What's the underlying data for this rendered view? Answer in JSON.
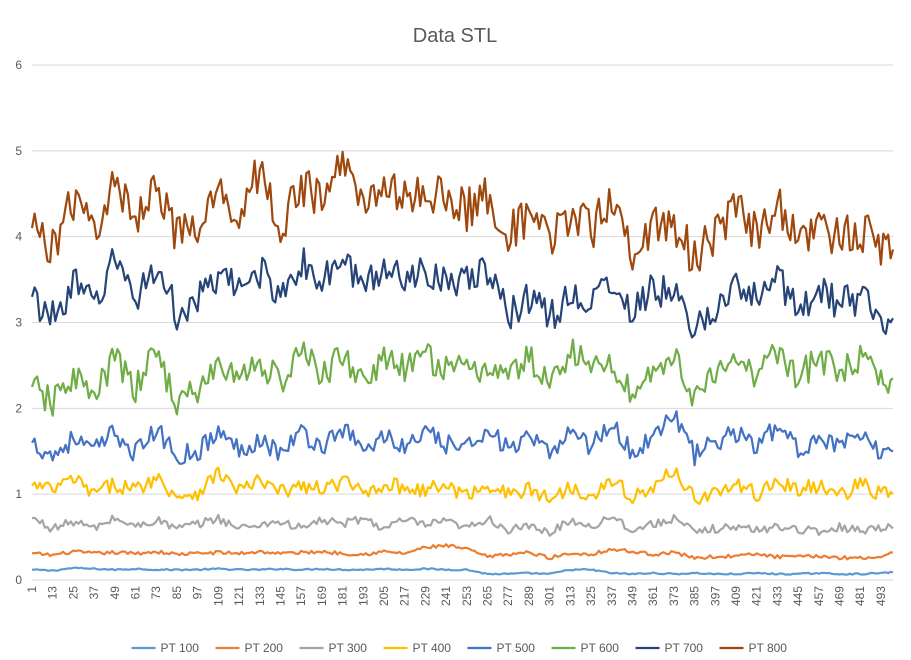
{
  "chart_data": {
    "type": "line",
    "title": "Data STL",
    "xlabel": "",
    "ylabel": "",
    "ylim": [
      0,
      6
    ],
    "yticks": [
      0,
      1,
      2,
      3,
      4,
      5,
      6
    ],
    "xlim": [
      1,
      500
    ],
    "xticks": [
      1,
      13,
      25,
      37,
      49,
      61,
      73,
      85,
      97,
      109,
      121,
      133,
      145,
      157,
      169,
      181,
      193,
      205,
      217,
      229,
      241,
      253,
      265,
      277,
      289,
      301,
      313,
      325,
      337,
      349,
      361,
      373,
      385,
      397,
      409,
      421,
      433,
      445,
      457,
      469,
      481,
      493
    ],
    "grid": "horizontal",
    "legend": "bottom",
    "x": [
      1,
      13,
      25,
      37,
      49,
      61,
      73,
      85,
      97,
      109,
      121,
      133,
      145,
      157,
      169,
      181,
      193,
      205,
      217,
      229,
      241,
      253,
      265,
      277,
      289,
      301,
      313,
      325,
      337,
      349,
      361,
      373,
      385,
      397,
      409,
      421,
      433,
      445,
      457,
      469,
      481,
      493,
      500
    ],
    "series": [
      {
        "name": "PT 100",
        "color": "#5B9BD5",
        "values": [
          0.12,
          0.11,
          0.14,
          0.13,
          0.12,
          0.13,
          0.12,
          0.12,
          0.12,
          0.13,
          0.12,
          0.12,
          0.13,
          0.12,
          0.13,
          0.12,
          0.12,
          0.13,
          0.12,
          0.13,
          0.12,
          0.12,
          0.07,
          0.07,
          0.08,
          0.07,
          0.12,
          0.12,
          0.08,
          0.07,
          0.08,
          0.07,
          0.08,
          0.07,
          0.07,
          0.08,
          0.07,
          0.07,
          0.08,
          0.07,
          0.07,
          0.08,
          0.09
        ]
      },
      {
        "name": "PT 200",
        "color": "#ED7D31",
        "values": [
          0.31,
          0.29,
          0.33,
          0.31,
          0.32,
          0.31,
          0.33,
          0.3,
          0.31,
          0.32,
          0.31,
          0.33,
          0.31,
          0.32,
          0.33,
          0.31,
          0.3,
          0.33,
          0.31,
          0.38,
          0.4,
          0.36,
          0.27,
          0.3,
          0.32,
          0.26,
          0.31,
          0.3,
          0.36,
          0.33,
          0.3,
          0.32,
          0.26,
          0.27,
          0.28,
          0.3,
          0.27,
          0.27,
          0.28,
          0.26,
          0.26,
          0.27,
          0.32
        ]
      },
      {
        "name": "PT 300",
        "color": "#A5A5A5",
        "values": [
          0.72,
          0.6,
          0.68,
          0.6,
          0.72,
          0.62,
          0.7,
          0.6,
          0.65,
          0.72,
          0.6,
          0.65,
          0.68,
          0.6,
          0.7,
          0.65,
          0.72,
          0.6,
          0.7,
          0.64,
          0.68,
          0.6,
          0.72,
          0.58,
          0.62,
          0.55,
          0.7,
          0.62,
          0.75,
          0.58,
          0.65,
          0.72,
          0.55,
          0.6,
          0.62,
          0.58,
          0.62,
          0.6,
          0.55,
          0.62,
          0.58,
          0.62,
          0.6
        ]
      },
      {
        "name": "PT 400",
        "color": "#FFC000",
        "values": [
          1.1,
          1.05,
          1.18,
          1.0,
          1.12,
          1.05,
          1.2,
          0.98,
          1.02,
          1.25,
          1.05,
          1.15,
          1.02,
          1.1,
          1.05,
          1.15,
          1.02,
          1.12,
          1.08,
          1.05,
          1.1,
          0.98,
          1.12,
          1.0,
          1.05,
          0.95,
          1.08,
          1.0,
          1.15,
          0.98,
          1.05,
          1.3,
          0.95,
          1.02,
          1.1,
          1.0,
          1.15,
          1.05,
          1.1,
          0.98,
          1.12,
          1.0,
          1.0
        ]
      },
      {
        "name": "PT 500",
        "color": "#4472C4",
        "values": [
          1.6,
          1.45,
          1.65,
          1.5,
          1.72,
          1.48,
          1.75,
          1.45,
          1.5,
          1.72,
          1.52,
          1.65,
          1.48,
          1.72,
          1.55,
          1.78,
          1.5,
          1.68,
          1.55,
          1.7,
          1.58,
          1.52,
          1.8,
          1.5,
          1.65,
          1.45,
          1.78,
          1.55,
          1.85,
          1.45,
          1.7,
          1.95,
          1.45,
          1.6,
          1.72,
          1.55,
          1.8,
          1.5,
          1.7,
          1.55,
          1.65,
          1.48,
          1.5
        ]
      },
      {
        "name": "PT 600",
        "color": "#70AD47",
        "values": [
          2.25,
          2.05,
          2.4,
          2.1,
          2.6,
          2.2,
          2.7,
          2.05,
          2.2,
          2.5,
          2.35,
          2.55,
          2.3,
          2.65,
          2.4,
          2.6,
          2.35,
          2.55,
          2.45,
          2.6,
          2.5,
          2.4,
          2.5,
          2.35,
          2.6,
          2.25,
          2.7,
          2.45,
          2.55,
          2.15,
          2.45,
          2.6,
          2.15,
          2.35,
          2.55,
          2.4,
          2.7,
          2.35,
          2.6,
          2.4,
          2.55,
          2.3,
          2.35
        ]
      },
      {
        "name": "PT 700",
        "color": "#264478",
        "values": [
          3.3,
          3.05,
          3.45,
          3.2,
          3.75,
          3.3,
          3.65,
          3.1,
          3.25,
          3.5,
          3.4,
          3.6,
          3.35,
          3.7,
          3.45,
          3.75,
          3.4,
          3.65,
          3.55,
          3.6,
          3.55,
          3.45,
          3.6,
          3.1,
          3.3,
          3.05,
          3.35,
          3.2,
          3.5,
          3.1,
          3.4,
          3.3,
          2.95,
          3.15,
          3.4,
          3.25,
          3.55,
          3.15,
          3.4,
          3.2,
          3.3,
          3.05,
          3.05
        ]
      },
      {
        "name": "PT 800",
        "color": "#9E480E",
        "values": [
          4.1,
          3.9,
          4.4,
          4.1,
          4.6,
          4.2,
          4.7,
          4.0,
          4.05,
          4.5,
          4.3,
          4.8,
          4.1,
          4.6,
          4.4,
          4.9,
          4.35,
          4.7,
          4.4,
          4.55,
          4.45,
          4.3,
          4.5,
          4.05,
          4.2,
          3.95,
          4.3,
          4.05,
          4.5,
          3.85,
          4.1,
          4.15,
          3.75,
          4.0,
          4.3,
          4.05,
          4.4,
          3.95,
          4.2,
          3.95,
          4.1,
          3.85,
          3.85
        ]
      }
    ]
  }
}
